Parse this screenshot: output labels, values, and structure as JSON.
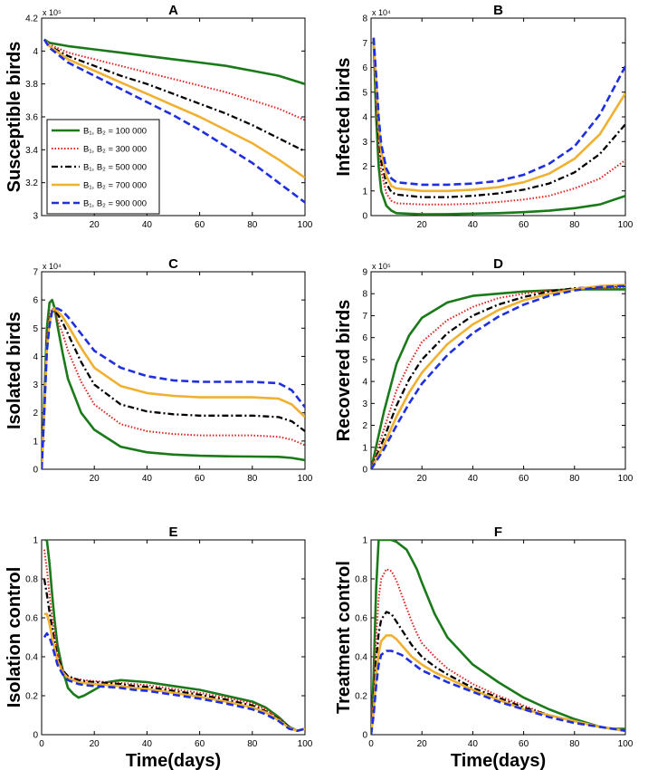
{
  "figure": {
    "xlabel": "Time(days)"
  },
  "legend": {
    "entries": [
      {
        "label": "B₁, B₂ = 100 000",
        "color": "#1a7a1a",
        "dash": "solid"
      },
      {
        "label": "B₁, B₂ = 300 000",
        "color": "#e0201c",
        "dash": "dotted"
      },
      {
        "label": "B₁, B₂ = 500 000",
        "color": "#000000",
        "dash": "dashdot"
      },
      {
        "label": "B₁, B₂ = 700 000",
        "color": "#f0b030",
        "dash": "solid"
      },
      {
        "label": "B₁, B₂ = 900 000",
        "color": "#1f2fe0",
        "dash": "dashed"
      }
    ]
  },
  "chart_data": [
    {
      "panel": "A",
      "type": "line",
      "ylabel": "Susceptible birds",
      "exponent": "x 10⁵",
      "xlim": [
        0,
        100
      ],
      "ylim": [
        3,
        4.2
      ],
      "xticks": [
        "20",
        "40",
        "60",
        "80",
        "100"
      ],
      "xtick_values": [
        20,
        40,
        60,
        80,
        100
      ],
      "yticks": [
        "3",
        "3.2",
        "3.4",
        "3.6",
        "3.8",
        "4",
        "4.2"
      ],
      "ytick_values": [
        3,
        3.2,
        3.4,
        3.6,
        3.8,
        4,
        4.2
      ],
      "x": [
        1,
        3,
        10,
        20,
        30,
        40,
        50,
        60,
        70,
        80,
        90,
        100
      ],
      "series": [
        {
          "name": "B₁, B₂ = 100 000",
          "values": [
            4.07,
            4.05,
            4.03,
            4.01,
            3.99,
            3.97,
            3.95,
            3.93,
            3.91,
            3.88,
            3.85,
            3.8
          ]
        },
        {
          "name": "B₁, B₂ = 300 000",
          "values": [
            4.07,
            4.04,
            3.99,
            3.95,
            3.91,
            3.87,
            3.83,
            3.79,
            3.75,
            3.7,
            3.65,
            3.58
          ]
        },
        {
          "name": "B₁, B₂ = 500 000",
          "values": [
            4.07,
            4.03,
            3.97,
            3.91,
            3.85,
            3.8,
            3.74,
            3.68,
            3.62,
            3.55,
            3.47,
            3.39
          ]
        },
        {
          "name": "B₁, B₂ = 700 000",
          "values": [
            4.07,
            4.03,
            3.95,
            3.88,
            3.81,
            3.74,
            3.67,
            3.6,
            3.52,
            3.44,
            3.34,
            3.23
          ]
        },
        {
          "name": "B₁, B₂ = 900 000",
          "values": [
            4.07,
            4.02,
            3.93,
            3.85,
            3.77,
            3.69,
            3.61,
            3.52,
            3.42,
            3.32,
            3.2,
            3.08
          ]
        }
      ]
    },
    {
      "panel": "B",
      "type": "line",
      "ylabel": "Infected birds",
      "exponent": "x 10⁴",
      "xlim": [
        0,
        100
      ],
      "ylim": [
        0,
        8
      ],
      "xticks": [
        "20",
        "40",
        "60",
        "80",
        "100"
      ],
      "xtick_values": [
        20,
        40,
        60,
        80,
        100
      ],
      "yticks": [
        "0",
        "1",
        "2",
        "3",
        "4",
        "5",
        "6",
        "7",
        "8"
      ],
      "ytick_values": [
        0,
        1,
        2,
        3,
        4,
        5,
        6,
        7,
        8
      ],
      "x": [
        1,
        2,
        3,
        4,
        6,
        8,
        10,
        20,
        30,
        40,
        50,
        60,
        70,
        80,
        90,
        100
      ],
      "series": [
        {
          "name": "B₁, B₂ = 100 000",
          "values": [
            7.2,
            4.0,
            2.0,
            1.0,
            0.4,
            0.2,
            0.1,
            0.05,
            0.06,
            0.08,
            0.1,
            0.14,
            0.2,
            0.3,
            0.45,
            0.8
          ]
        },
        {
          "name": "B₁, B₂ = 300 000",
          "values": [
            7.2,
            4.6,
            2.8,
            1.8,
            0.9,
            0.6,
            0.5,
            0.45,
            0.45,
            0.48,
            0.55,
            0.65,
            0.8,
            1.1,
            1.5,
            2.25
          ]
        },
        {
          "name": "B₁, B₂ = 500 000",
          "values": [
            7.2,
            5.0,
            3.3,
            2.2,
            1.3,
            0.95,
            0.85,
            0.75,
            0.75,
            0.8,
            0.9,
            1.05,
            1.3,
            1.75,
            2.5,
            3.7
          ]
        },
        {
          "name": "B₁, B₂ = 700 000",
          "values": [
            7.2,
            5.4,
            3.7,
            2.6,
            1.6,
            1.2,
            1.1,
            1.0,
            1.0,
            1.05,
            1.15,
            1.35,
            1.7,
            2.3,
            3.3,
            4.95
          ]
        },
        {
          "name": "B₁, B₂ = 900 000",
          "values": [
            7.2,
            5.7,
            4.0,
            2.9,
            1.9,
            1.5,
            1.35,
            1.25,
            1.25,
            1.3,
            1.4,
            1.65,
            2.1,
            2.8,
            4.1,
            6.05
          ]
        }
      ]
    },
    {
      "panel": "C",
      "type": "line",
      "ylabel": "Isolated birds",
      "exponent": "x 10⁴",
      "xlim": [
        0,
        100
      ],
      "ylim": [
        0,
        7
      ],
      "xticks": [
        "20",
        "40",
        "60",
        "80",
        "100"
      ],
      "xtick_values": [
        20,
        40,
        60,
        80,
        100
      ],
      "yticks": [
        "0",
        "1",
        "2",
        "3",
        "4",
        "5",
        "6",
        "7"
      ],
      "ytick_values": [
        0,
        1,
        2,
        3,
        4,
        5,
        6,
        7
      ],
      "x": [
        0,
        1,
        2,
        3,
        4,
        5,
        6,
        8,
        10,
        15,
        20,
        30,
        40,
        50,
        60,
        70,
        80,
        90,
        95,
        100
      ],
      "series": [
        {
          "name": "B₁, B₂ = 100 000",
          "values": [
            0,
            2.5,
            5.0,
            5.9,
            6.0,
            5.7,
            5.1,
            4.1,
            3.2,
            2.0,
            1.4,
            0.8,
            0.6,
            0.52,
            0.48,
            0.46,
            0.45,
            0.44,
            0.4,
            0.32
          ]
        },
        {
          "name": "B₁, B₂ = 300 000",
          "values": [
            0,
            2.3,
            4.7,
            5.5,
            5.7,
            5.6,
            5.3,
            4.8,
            4.2,
            3.1,
            2.3,
            1.6,
            1.35,
            1.25,
            1.2,
            1.2,
            1.2,
            1.15,
            1.05,
            0.85
          ]
        },
        {
          "name": "B₁, B₂ = 500 000",
          "values": [
            0,
            2.2,
            4.5,
            5.3,
            5.6,
            5.6,
            5.5,
            5.2,
            4.8,
            3.8,
            3.0,
            2.3,
            2.05,
            1.95,
            1.9,
            1.9,
            1.9,
            1.85,
            1.7,
            1.35
          ]
        },
        {
          "name": "B₁, B₂ = 700 000",
          "values": [
            0,
            2.1,
            4.3,
            5.2,
            5.6,
            5.7,
            5.6,
            5.4,
            5.1,
            4.3,
            3.6,
            2.95,
            2.7,
            2.6,
            2.55,
            2.55,
            2.55,
            2.5,
            2.3,
            1.85
          ]
        },
        {
          "name": "B₁, B₂ = 900 000",
          "values": [
            0,
            2.0,
            4.2,
            5.1,
            5.6,
            5.7,
            5.7,
            5.6,
            5.4,
            4.8,
            4.2,
            3.6,
            3.3,
            3.15,
            3.1,
            3.1,
            3.1,
            3.05,
            2.8,
            2.2
          ]
        }
      ]
    },
    {
      "panel": "D",
      "type": "line",
      "ylabel": "Recovered birds",
      "exponent": "x 10⁵",
      "xlim": [
        0,
        100
      ],
      "ylim": [
        0,
        9
      ],
      "xticks": [
        "20",
        "40",
        "60",
        "80",
        "100"
      ],
      "xtick_values": [
        20,
        40,
        60,
        80,
        100
      ],
      "yticks": [
        "0",
        "1",
        "2",
        "3",
        "4",
        "5",
        "6",
        "7",
        "8",
        "9"
      ],
      "ytick_values": [
        0,
        1,
        2,
        3,
        4,
        5,
        6,
        7,
        8,
        9
      ],
      "x": [
        0,
        5,
        10,
        15,
        20,
        30,
        40,
        50,
        60,
        70,
        80,
        90,
        100
      ],
      "series": [
        {
          "name": "B₁, B₂ = 100 000",
          "values": [
            0,
            2.6,
            4.8,
            6.1,
            6.9,
            7.6,
            7.9,
            8.0,
            8.1,
            8.15,
            8.2,
            8.2,
            8.2
          ]
        },
        {
          "name": "B₁, B₂ = 300 000",
          "values": [
            0,
            1.8,
            3.6,
            4.8,
            5.8,
            6.8,
            7.4,
            7.8,
            8.0,
            8.15,
            8.2,
            8.25,
            8.3
          ]
        },
        {
          "name": "B₁, B₂ = 500 000",
          "values": [
            0,
            1.4,
            2.9,
            4.1,
            5.0,
            6.2,
            7.0,
            7.5,
            7.85,
            8.1,
            8.25,
            8.3,
            8.35
          ]
        },
        {
          "name": "B₁, B₂ = 700 000",
          "values": [
            0,
            1.1,
            2.4,
            3.5,
            4.4,
            5.7,
            6.6,
            7.25,
            7.7,
            8.0,
            8.2,
            8.35,
            8.4
          ]
        },
        {
          "name": "B₁, B₂ = 900 000",
          "values": [
            0,
            0.9,
            2.0,
            3.0,
            3.9,
            5.2,
            6.2,
            6.95,
            7.5,
            7.9,
            8.15,
            8.3,
            8.35
          ]
        }
      ]
    },
    {
      "panel": "E",
      "type": "line",
      "ylabel": "Isolation control",
      "xlim": [
        0,
        100
      ],
      "ylim": [
        0,
        1
      ],
      "xticks": [
        "0",
        "20",
        "40",
        "60",
        "80",
        "100"
      ],
      "xtick_values": [
        0,
        20,
        40,
        60,
        80,
        100
      ],
      "yticks": [
        "0",
        "0.2",
        "0.4",
        "0.6",
        "0.8",
        "1"
      ],
      "ytick_values": [
        0,
        0.2,
        0.4,
        0.6,
        0.8,
        1
      ],
      "x": [
        1,
        2,
        3,
        4,
        5,
        6,
        8,
        10,
        12,
        14,
        16,
        20,
        25,
        30,
        35,
        40,
        50,
        60,
        70,
        80,
        85,
        90,
        94,
        97,
        100
      ],
      "series": [
        {
          "name": "B₁, B₂ = 100 000",
          "values": [
            1.0,
            1.0,
            0.88,
            0.72,
            0.58,
            0.46,
            0.33,
            0.24,
            0.21,
            0.19,
            0.2,
            0.23,
            0.27,
            0.28,
            0.275,
            0.27,
            0.25,
            0.23,
            0.2,
            0.17,
            0.14,
            0.09,
            0.04,
            0.02,
            0.03
          ]
        },
        {
          "name": "B₁, B₂ = 300 000",
          "values": [
            0.95,
            0.85,
            0.72,
            0.6,
            0.5,
            0.42,
            0.33,
            0.3,
            0.29,
            0.285,
            0.28,
            0.275,
            0.27,
            0.265,
            0.26,
            0.255,
            0.235,
            0.215,
            0.19,
            0.16,
            0.13,
            0.085,
            0.04,
            0.02,
            0.03
          ]
        },
        {
          "name": "B₁, B₂ = 500 000",
          "values": [
            0.8,
            0.72,
            0.63,
            0.55,
            0.47,
            0.4,
            0.33,
            0.3,
            0.29,
            0.28,
            0.275,
            0.27,
            0.265,
            0.26,
            0.25,
            0.245,
            0.225,
            0.205,
            0.18,
            0.15,
            0.12,
            0.08,
            0.04,
            0.02,
            0.03
          ]
        },
        {
          "name": "B₁, B₂ = 700 000",
          "values": [
            0.62,
            0.62,
            0.57,
            0.5,
            0.44,
            0.38,
            0.32,
            0.29,
            0.28,
            0.27,
            0.265,
            0.26,
            0.255,
            0.25,
            0.24,
            0.235,
            0.215,
            0.195,
            0.17,
            0.14,
            0.115,
            0.075,
            0.035,
            0.02,
            0.03
          ]
        },
        {
          "name": "B₁, B₂ = 900 000",
          "values": [
            0.5,
            0.52,
            0.5,
            0.46,
            0.41,
            0.36,
            0.31,
            0.28,
            0.27,
            0.26,
            0.255,
            0.25,
            0.245,
            0.24,
            0.23,
            0.225,
            0.205,
            0.185,
            0.16,
            0.13,
            0.105,
            0.07,
            0.03,
            0.02,
            0.03
          ]
        }
      ]
    },
    {
      "panel": "F",
      "type": "line",
      "ylabel": "Treatment control",
      "xlim": [
        0,
        100
      ],
      "ylim": [
        0,
        1
      ],
      "xticks": [
        "0",
        "20",
        "40",
        "60",
        "80",
        "100"
      ],
      "xtick_values": [
        0,
        20,
        40,
        60,
        80,
        100
      ],
      "yticks": [
        "0",
        "0.2",
        "0.4",
        "0.6",
        "0.8",
        "1"
      ],
      "ytick_values": [
        0,
        0.2,
        0.4,
        0.6,
        0.8,
        1
      ],
      "x": [
        0,
        1,
        2,
        3,
        4,
        6,
        8,
        10,
        12,
        14,
        16,
        18,
        20,
        25,
        30,
        40,
        50,
        60,
        70,
        80,
        90,
        95,
        100
      ],
      "series": [
        {
          "name": "B₁, B₂ = 100 000",
          "values": [
            0,
            0.3,
            0.75,
            1.0,
            1.0,
            1.0,
            1.0,
            0.99,
            0.97,
            0.95,
            0.9,
            0.85,
            0.78,
            0.62,
            0.5,
            0.36,
            0.27,
            0.19,
            0.13,
            0.08,
            0.04,
            0.03,
            0.03
          ]
        },
        {
          "name": "B₁, B₂ = 300 000",
          "values": [
            0,
            0.2,
            0.5,
            0.7,
            0.8,
            0.85,
            0.84,
            0.79,
            0.72,
            0.65,
            0.58,
            0.52,
            0.47,
            0.4,
            0.34,
            0.26,
            0.2,
            0.15,
            0.1,
            0.07,
            0.04,
            0.03,
            0.02
          ]
        },
        {
          "name": "B₁, B₂ = 500 000",
          "values": [
            0,
            0.15,
            0.38,
            0.52,
            0.59,
            0.63,
            0.62,
            0.58,
            0.54,
            0.5,
            0.46,
            0.43,
            0.4,
            0.35,
            0.31,
            0.24,
            0.19,
            0.14,
            0.1,
            0.07,
            0.04,
            0.03,
            0.02
          ]
        },
        {
          "name": "B₁, B₂ = 700 000",
          "values": [
            0,
            0.12,
            0.3,
            0.42,
            0.48,
            0.51,
            0.51,
            0.49,
            0.46,
            0.43,
            0.4,
            0.38,
            0.36,
            0.32,
            0.29,
            0.23,
            0.18,
            0.13,
            0.1,
            0.07,
            0.04,
            0.03,
            0.02
          ]
        },
        {
          "name": "B₁, B₂ = 900 000",
          "values": [
            0,
            0.1,
            0.25,
            0.36,
            0.41,
            0.43,
            0.43,
            0.42,
            0.41,
            0.39,
            0.37,
            0.35,
            0.33,
            0.3,
            0.27,
            0.22,
            0.17,
            0.13,
            0.09,
            0.06,
            0.04,
            0.03,
            0.02
          ]
        }
      ]
    }
  ]
}
